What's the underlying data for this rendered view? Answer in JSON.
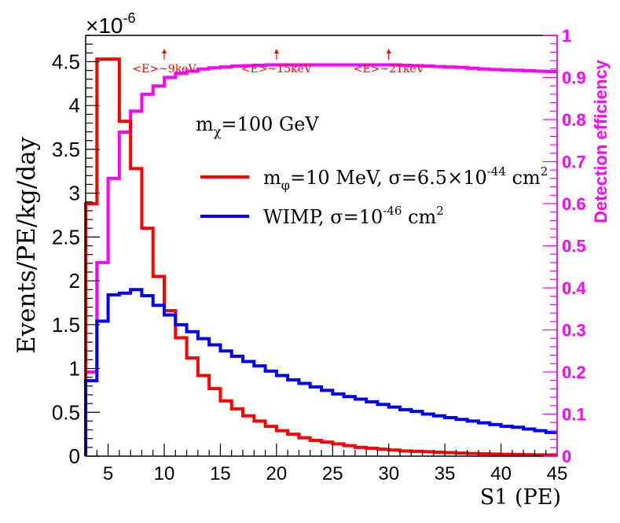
{
  "chart_data": {
    "type": "line",
    "style": "step",
    "xlabel": "S1 (PE)",
    "ylabel": "Events/PE/kg/day",
    "y2label": "Detection efficiency",
    "y_multiplier": "×10",
    "y_multiplier_exp": "-6",
    "xlim": [
      3,
      45
    ],
    "ylim": [
      0,
      4.8
    ],
    "y2lim": [
      0,
      1
    ],
    "x_ticks": [
      5,
      10,
      15,
      20,
      25,
      30,
      35,
      40,
      45
    ],
    "x_tick_labels": [
      "5",
      "10",
      "15",
      "20",
      "25",
      "30",
      "35",
      "40",
      "45"
    ],
    "y_ticks": [
      0,
      0.5,
      1,
      1.5,
      2,
      2.5,
      3,
      3.5,
      4,
      4.5
    ],
    "y_tick_labels": [
      "0",
      "0.5",
      "1",
      "1.5",
      "2",
      "2.5",
      "3",
      "3.5",
      "4",
      "4.5"
    ],
    "y2_ticks": [
      0,
      0.1,
      0.2,
      0.3,
      0.4,
      0.5,
      0.6,
      0.7,
      0.8,
      0.9,
      1
    ],
    "y2_tick_labels": [
      "0",
      "0.1",
      "0.2",
      "0.3",
      "0.4",
      "0.5",
      "0.6",
      "0.7",
      "0.8",
      "0.9",
      "1"
    ],
    "bin_edges": [
      3,
      4,
      5,
      6,
      7,
      8,
      9,
      10,
      11,
      12,
      13,
      14,
      15,
      16,
      17,
      18,
      19,
      20,
      21,
      22,
      23,
      24,
      25,
      26,
      27,
      28,
      29,
      30,
      31,
      32,
      33,
      34,
      35,
      36,
      37,
      38,
      39,
      40,
      41,
      42,
      43,
      44,
      45
    ],
    "series": [
      {
        "name": "mediator",
        "legend": {
          "prefix": "m",
          "sub": "φ",
          "mid": "=10 MeV, σ=6.5×10",
          "sup": "-44",
          "tail": " cm",
          "sup2": "2"
        },
        "color": "#ff0000",
        "axis": "left",
        "values": [
          2.88,
          4.53,
          4.53,
          3.82,
          3.28,
          2.6,
          2.05,
          1.66,
          1.35,
          1.12,
          0.92,
          0.77,
          0.63,
          0.54,
          0.46,
          0.4,
          0.34,
          0.29,
          0.25,
          0.21,
          0.18,
          0.16,
          0.14,
          0.12,
          0.1,
          0.09,
          0.08,
          0.07,
          0.06,
          0.055,
          0.05,
          0.045,
          0.04,
          0.035,
          0.03,
          0.027,
          0.024,
          0.021,
          0.019,
          0.017,
          0.015,
          0.014
        ]
      },
      {
        "name": "WIMP",
        "legend": {
          "prefix": "WIMP, σ=10",
          "sup": "-46",
          "tail": " cm",
          "sup2": "2"
        },
        "color": "#0000ff",
        "axis": "left",
        "values": [
          0.86,
          1.54,
          1.84,
          1.86,
          1.9,
          1.83,
          1.72,
          1.61,
          1.5,
          1.42,
          1.34,
          1.27,
          1.2,
          1.14,
          1.08,
          1.03,
          0.97,
          0.92,
          0.87,
          0.83,
          0.79,
          0.75,
          0.71,
          0.68,
          0.65,
          0.62,
          0.59,
          0.56,
          0.53,
          0.51,
          0.48,
          0.46,
          0.44,
          0.42,
          0.4,
          0.38,
          0.36,
          0.34,
          0.33,
          0.31,
          0.29,
          0.27
        ]
      },
      {
        "name": "Detection efficiency",
        "color": "#ff00ff",
        "axis": "right",
        "values": [
          0.2,
          0.46,
          0.66,
          0.77,
          0.82,
          0.86,
          0.88,
          0.9,
          0.91,
          0.915,
          0.92,
          0.923,
          0.925,
          0.927,
          0.928,
          0.929,
          0.93,
          0.93,
          0.93,
          0.93,
          0.93,
          0.93,
          0.93,
          0.93,
          0.93,
          0.93,
          0.93,
          0.93,
          0.929,
          0.928,
          0.927,
          0.926,
          0.925,
          0.924,
          0.922,
          0.92,
          0.919,
          0.918,
          0.917,
          0.916,
          0.915,
          0.914
        ]
      }
    ],
    "annotations": [
      {
        "x": 10,
        "text": "<E>~9keV"
      },
      {
        "x": 20,
        "text": "<E>~15keV"
      },
      {
        "x": 30,
        "text": "<E>~21keV"
      }
    ],
    "mass_label": {
      "prefix": "m",
      "sub": "χ",
      "tail": "=100 GeV"
    }
  }
}
